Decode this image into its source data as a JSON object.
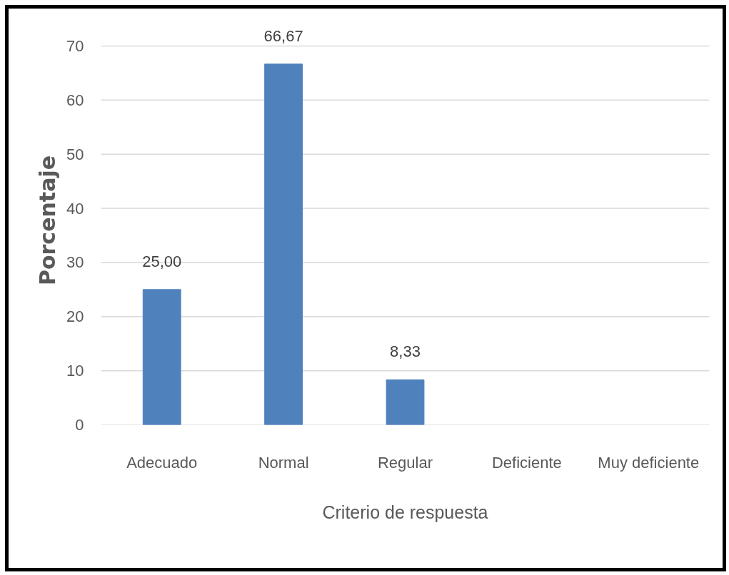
{
  "chart_data": {
    "type": "bar",
    "xlabel": "Criterio de respuesta",
    "ylabel": "Porcentaje",
    "categories": [
      "Adecuado",
      "Normal",
      "Regular",
      "Deficiente",
      "Muy deficiente"
    ],
    "values": [
      25,
      66.67,
      8.33,
      0,
      0
    ],
    "color": "#4f81bd",
    "value_labels": [
      "25,00",
      "66,67",
      "8,33",
      null,
      null
    ],
    "ylim": [
      0,
      70
    ],
    "yticks": [
      0,
      10,
      20,
      30,
      40,
      50,
      60,
      70
    ],
    "grid": "y"
  }
}
